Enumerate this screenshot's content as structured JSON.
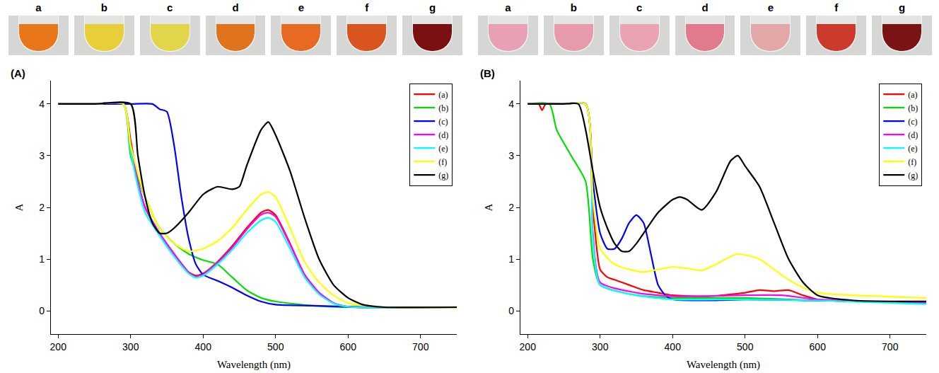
{
  "chart_data": [
    {
      "type": "line",
      "panel": "(A)",
      "photo_labels": [
        "a",
        "b",
        "c",
        "d",
        "e",
        "f",
        "g"
      ],
      "photo_colors": [
        "#e8761a",
        "#e8cf3a",
        "#e3d54a",
        "#e0731e",
        "#e86a22",
        "#d9541e",
        "#7a1010"
      ],
      "x_label": "Wavelength (nm)",
      "y_label": "A",
      "xlim": [
        190,
        750
      ],
      "xticks": [
        200,
        300,
        400,
        500,
        600,
        700
      ],
      "ylim": [
        -0.45,
        4.45
      ],
      "yticks": [
        0,
        1,
        2,
        3,
        4
      ],
      "grid": false,
      "legend": "top-right",
      "series": [
        {
          "name": "(a)",
          "color": "#ff0000",
          "x": [
            200,
            250,
            290,
            300,
            310,
            320,
            340,
            360,
            380,
            390,
            400,
            420,
            440,
            460,
            480,
            490,
            500,
            520,
            540,
            560,
            580,
            600,
            650,
            750
          ],
          "values": [
            4,
            4,
            4,
            3.3,
            2.5,
            2.0,
            1.5,
            1.1,
            0.75,
            0.68,
            0.72,
            0.95,
            1.25,
            1.6,
            1.9,
            1.95,
            1.85,
            1.3,
            0.7,
            0.35,
            0.15,
            0.08,
            0.06,
            0.06
          ]
        },
        {
          "name": "(b)",
          "color": "#00e000",
          "x": [
            200,
            250,
            290,
            300,
            320,
            340,
            360,
            380,
            400,
            420,
            440,
            460,
            480,
            500,
            550,
            600,
            650,
            750
          ],
          "values": [
            4,
            4,
            4,
            3.0,
            2.2,
            1.6,
            1.3,
            1.1,
            0.98,
            0.9,
            0.65,
            0.4,
            0.25,
            0.18,
            0.1,
            0.07,
            0.06,
            0.06
          ]
        },
        {
          "name": "(c)",
          "color": "#0000ff",
          "x": [
            200,
            250,
            300,
            330,
            340,
            350,
            360,
            370,
            380,
            390,
            400,
            420,
            440,
            460,
            480,
            500,
            550,
            600,
            650,
            750
          ],
          "values": [
            4,
            4,
            4,
            4,
            3.9,
            3.85,
            3.2,
            2.2,
            1.4,
            0.9,
            0.7,
            0.58,
            0.45,
            0.3,
            0.18,
            0.12,
            0.1,
            0.08,
            0.07,
            0.07
          ]
        },
        {
          "name": "(d)",
          "color": "#ff00ff",
          "x": [
            200,
            250,
            290,
            300,
            310,
            320,
            340,
            360,
            380,
            390,
            400,
            420,
            440,
            460,
            480,
            490,
            500,
            520,
            540,
            560,
            580,
            600,
            650,
            750
          ],
          "values": [
            4,
            4,
            4,
            3.2,
            2.5,
            2.0,
            1.5,
            1.1,
            0.74,
            0.66,
            0.7,
            0.93,
            1.22,
            1.57,
            1.86,
            1.9,
            1.82,
            1.28,
            0.7,
            0.35,
            0.15,
            0.08,
            0.06,
            0.06
          ]
        },
        {
          "name": "(e)",
          "color": "#00ffff",
          "x": [
            200,
            250,
            290,
            300,
            310,
            320,
            340,
            360,
            380,
            390,
            400,
            420,
            440,
            460,
            480,
            490,
            500,
            520,
            540,
            560,
            580,
            600,
            650,
            750
          ],
          "values": [
            4,
            4,
            4,
            3.1,
            2.4,
            1.9,
            1.45,
            1.05,
            0.72,
            0.64,
            0.68,
            0.9,
            1.18,
            1.5,
            1.75,
            1.8,
            1.72,
            1.2,
            0.65,
            0.32,
            0.14,
            0.08,
            0.06,
            0.06
          ]
        },
        {
          "name": "(f)",
          "color": "#ffff00",
          "x": [
            200,
            250,
            290,
            300,
            320,
            340,
            360,
            380,
            400,
            420,
            440,
            460,
            480,
            490,
            500,
            520,
            540,
            560,
            580,
            600,
            650,
            750
          ],
          "values": [
            4,
            4,
            4,
            3.2,
            2.2,
            1.6,
            1.3,
            1.15,
            1.2,
            1.35,
            1.6,
            1.95,
            2.25,
            2.3,
            2.2,
            1.6,
            0.95,
            0.55,
            0.3,
            0.15,
            0.07,
            0.06
          ]
        },
        {
          "name": "(g)",
          "color": "#000000",
          "x": [
            200,
            250,
            300,
            310,
            320,
            330,
            340,
            350,
            360,
            380,
            400,
            420,
            440,
            450,
            460,
            480,
            490,
            500,
            520,
            540,
            560,
            580,
            600,
            620,
            650,
            750
          ],
          "values": [
            4,
            4,
            4,
            3.0,
            2.2,
            1.7,
            1.5,
            1.5,
            1.6,
            1.9,
            2.25,
            2.4,
            2.35,
            2.4,
            2.8,
            3.5,
            3.65,
            3.4,
            2.7,
            1.8,
            1.0,
            0.5,
            0.25,
            0.12,
            0.07,
            0.07
          ]
        }
      ]
    },
    {
      "type": "line",
      "panel": "(B)",
      "photo_labels": [
        "a",
        "b",
        "c",
        "d",
        "e",
        "f",
        "g"
      ],
      "photo_colors": [
        "#e8a0b4",
        "#e69aac",
        "#eaa3b3",
        "#e07b8c",
        "#e2a8a8",
        "#cc3a2e",
        "#7a1414"
      ],
      "x_label": "Wavelength (nm)",
      "y_label": "A",
      "xlim": [
        190,
        750
      ],
      "xticks": [
        200,
        300,
        400,
        500,
        600,
        700
      ],
      "ylim": [
        -0.45,
        4.45
      ],
      "yticks": [
        0,
        1,
        2,
        3,
        4
      ],
      "grid": false,
      "legend": "top-right",
      "series": [
        {
          "name": "(a)",
          "color": "#ff0000",
          "x": [
            200,
            215,
            220,
            225,
            250,
            280,
            290,
            300,
            310,
            320,
            340,
            360,
            380,
            400,
            450,
            500,
            520,
            540,
            560,
            580,
            600,
            650,
            750
          ],
          "values": [
            4,
            4,
            3.88,
            4,
            4,
            4,
            2.0,
            0.8,
            0.65,
            0.6,
            0.5,
            0.4,
            0.35,
            0.3,
            0.28,
            0.35,
            0.4,
            0.38,
            0.4,
            0.3,
            0.22,
            0.18,
            0.15
          ]
        },
        {
          "name": "(b)",
          "color": "#00e000",
          "x": [
            200,
            230,
            240,
            260,
            280,
            290,
            300,
            350,
            400,
            500,
            600,
            750
          ],
          "values": [
            4,
            4,
            3.5,
            3.0,
            2.5,
            1.0,
            0.5,
            0.3,
            0.25,
            0.25,
            0.2,
            0.15
          ]
        },
        {
          "name": "(c)",
          "color": "#0000ff",
          "x": [
            200,
            250,
            280,
            290,
            300,
            310,
            320,
            330,
            340,
            350,
            360,
            370,
            380,
            390,
            400,
            450,
            500,
            600,
            750
          ],
          "values": [
            4,
            4,
            4,
            2.5,
            1.5,
            1.2,
            1.2,
            1.4,
            1.7,
            1.85,
            1.7,
            1.1,
            0.5,
            0.3,
            0.22,
            0.2,
            0.22,
            0.2,
            0.15
          ]
        },
        {
          "name": "(d)",
          "color": "#ff00ff",
          "x": [
            200,
            250,
            280,
            290,
            300,
            350,
            400,
            500,
            550,
            600,
            750
          ],
          "values": [
            4,
            4,
            4,
            1.5,
            0.55,
            0.35,
            0.28,
            0.3,
            0.3,
            0.22,
            0.15
          ]
        },
        {
          "name": "(e)",
          "color": "#00ffff",
          "x": [
            200,
            250,
            280,
            290,
            300,
            350,
            400,
            500,
            600,
            750
          ],
          "values": [
            4,
            4,
            4,
            1.4,
            0.5,
            0.3,
            0.22,
            0.22,
            0.2,
            0.13
          ]
        },
        {
          "name": "(f)",
          "color": "#ffff00",
          "x": [
            200,
            250,
            280,
            290,
            300,
            320,
            340,
            360,
            380,
            400,
            420,
            440,
            460,
            480,
            490,
            500,
            520,
            540,
            560,
            580,
            600,
            650,
            750
          ],
          "values": [
            4,
            4,
            4,
            2.2,
            1.2,
            0.9,
            0.8,
            0.75,
            0.8,
            0.85,
            0.82,
            0.78,
            0.9,
            1.05,
            1.1,
            1.08,
            1.0,
            0.8,
            0.6,
            0.45,
            0.35,
            0.3,
            0.25
          ]
        },
        {
          "name": "(g)",
          "color": "#000000",
          "x": [
            200,
            250,
            270,
            280,
            290,
            300,
            310,
            320,
            330,
            340,
            350,
            360,
            380,
            400,
            410,
            420,
            440,
            460,
            480,
            490,
            500,
            520,
            540,
            560,
            580,
            600,
            650,
            750
          ],
          "values": [
            4,
            4,
            4,
            3.5,
            2.7,
            2.0,
            1.6,
            1.3,
            1.15,
            1.15,
            1.3,
            1.5,
            1.9,
            2.15,
            2.2,
            2.15,
            1.95,
            2.3,
            2.9,
            3.0,
            2.8,
            2.4,
            1.7,
            1.0,
            0.55,
            0.3,
            0.2,
            0.18
          ]
        }
      ]
    }
  ]
}
